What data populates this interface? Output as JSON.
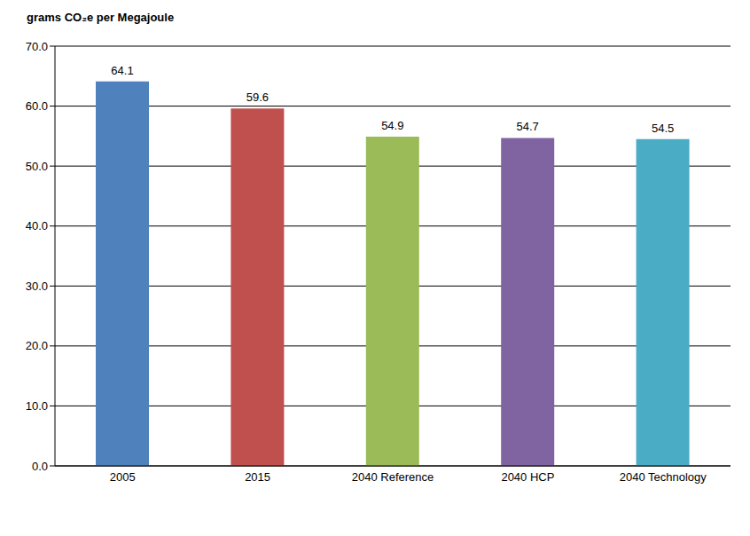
{
  "chart_data": {
    "type": "bar",
    "y_label": "grams CO₂e per Megajoule",
    "categories": [
      "2005",
      "2015",
      "2040 Reference",
      "2040 HCP",
      "2040 Technology"
    ],
    "values": [
      64.1,
      59.6,
      54.9,
      54.7,
      54.5
    ],
    "colors": [
      "#4f81bd",
      "#c0504d",
      "#9bbb59",
      "#8064a2",
      "#4bacc6"
    ],
    "ylim": [
      0,
      70
    ],
    "yticks": [
      {
        "value": 0,
        "label": "0.0"
      },
      {
        "value": 10,
        "label": "10.0"
      },
      {
        "value": 20,
        "label": "20.0"
      },
      {
        "value": 30,
        "label": "30.0"
      },
      {
        "value": 40,
        "label": "40.0"
      },
      {
        "value": 50,
        "label": "50.0"
      },
      {
        "value": 60,
        "label": "60.0"
      },
      {
        "value": 70,
        "label": "70.0"
      }
    ],
    "grid": true,
    "data_labels": true
  }
}
